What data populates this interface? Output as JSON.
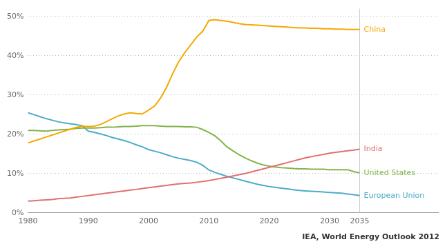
{
  "chart_data": {
    "type": "line",
    "annotations": [
      "IEA, World Energy Outlook 2012"
    ],
    "x": [
      1980,
      1981,
      1982,
      1983,
      1984,
      1985,
      1986,
      1987,
      1988,
      1989,
      1990,
      1991,
      1992,
      1993,
      1994,
      1995,
      1996,
      1997,
      1998,
      1999,
      2000,
      2001,
      2002,
      2003,
      2004,
      2005,
      2006,
      2007,
      2008,
      2009,
      2010,
      2011,
      2012,
      2013,
      2014,
      2015,
      2016,
      2017,
      2018,
      2019,
      2020,
      2021,
      2022,
      2023,
      2024,
      2025,
      2026,
      2027,
      2028,
      2029,
      2030,
      2031,
      2032,
      2033,
      2034,
      2035
    ],
    "series": [
      {
        "name": "China",
        "color": "#f5a800",
        "values": [
          0.178,
          0.183,
          0.188,
          0.193,
          0.198,
          0.203,
          0.208,
          0.213,
          0.218,
          0.221,
          0.22,
          0.221,
          0.225,
          0.232,
          0.24,
          0.247,
          0.252,
          0.255,
          0.253,
          0.252,
          0.262,
          0.272,
          0.293,
          0.32,
          0.355,
          0.385,
          0.408,
          0.428,
          0.448,
          0.463,
          0.49,
          0.492,
          0.49,
          0.488,
          0.485,
          0.482,
          0.48,
          0.479,
          0.478,
          0.477,
          0.476,
          0.475,
          0.474,
          0.473,
          0.472,
          0.471,
          0.471,
          0.47,
          0.47,
          0.469,
          0.469,
          0.468,
          0.468,
          0.467,
          0.467,
          0.467
        ]
      },
      {
        "name": "India",
        "color": "#e07070",
        "values": [
          0.03,
          0.031,
          0.032,
          0.033,
          0.034,
          0.036,
          0.037,
          0.038,
          0.04,
          0.042,
          0.044,
          0.046,
          0.048,
          0.05,
          0.052,
          0.054,
          0.056,
          0.058,
          0.06,
          0.062,
          0.064,
          0.066,
          0.068,
          0.07,
          0.072,
          0.074,
          0.075,
          0.076,
          0.078,
          0.08,
          0.082,
          0.085,
          0.088,
          0.091,
          0.094,
          0.097,
          0.1,
          0.104,
          0.108,
          0.112,
          0.116,
          0.12,
          0.124,
          0.128,
          0.132,
          0.136,
          0.14,
          0.143,
          0.146,
          0.149,
          0.152,
          0.154,
          0.156,
          0.158,
          0.16,
          0.162
        ]
      },
      {
        "name": "United States",
        "color": "#82b34a",
        "values": [
          0.21,
          0.21,
          0.209,
          0.208,
          0.21,
          0.211,
          0.212,
          0.213,
          0.215,
          0.216,
          0.216,
          0.216,
          0.217,
          0.218,
          0.218,
          0.219,
          0.22,
          0.22,
          0.221,
          0.222,
          0.222,
          0.222,
          0.221,
          0.22,
          0.22,
          0.22,
          0.219,
          0.219,
          0.218,
          0.212,
          0.205,
          0.196,
          0.183,
          0.168,
          0.158,
          0.148,
          0.14,
          0.133,
          0.127,
          0.122,
          0.119,
          0.117,
          0.115,
          0.114,
          0.113,
          0.112,
          0.112,
          0.111,
          0.111,
          0.111,
          0.11,
          0.11,
          0.11,
          0.11,
          0.105,
          0.102
        ]
      },
      {
        "name": "European Union",
        "color": "#4bacc6",
        "values": [
          0.255,
          0.25,
          0.245,
          0.24,
          0.236,
          0.232,
          0.229,
          0.227,
          0.225,
          0.222,
          0.208,
          0.205,
          0.201,
          0.197,
          0.192,
          0.188,
          0.184,
          0.179,
          0.173,
          0.168,
          0.161,
          0.157,
          0.153,
          0.148,
          0.143,
          0.139,
          0.136,
          0.133,
          0.129,
          0.121,
          0.109,
          0.103,
          0.098,
          0.093,
          0.089,
          0.085,
          0.081,
          0.077,
          0.073,
          0.07,
          0.067,
          0.065,
          0.063,
          0.061,
          0.059,
          0.057,
          0.056,
          0.055,
          0.054,
          0.053,
          0.052,
          0.051,
          0.05,
          0.048,
          0.046,
          0.044
        ]
      }
    ],
    "xlim": [
      1980,
      2048
    ],
    "xticks": [
      1980,
      1990,
      2000,
      2010,
      2020,
      2030,
      2035
    ],
    "ylim": [
      0,
      0.52
    ],
    "yticks": [
      {
        "value": 0.0,
        "label": "0%"
      },
      {
        "value": 0.1,
        "label": "10%"
      },
      {
        "value": 0.2,
        "label": "20%"
      },
      {
        "value": 0.3,
        "label": "30%"
      },
      {
        "value": 0.4,
        "label": "40%"
      },
      {
        "value": 0.5,
        "label": "50%"
      }
    ],
    "grid": true
  }
}
